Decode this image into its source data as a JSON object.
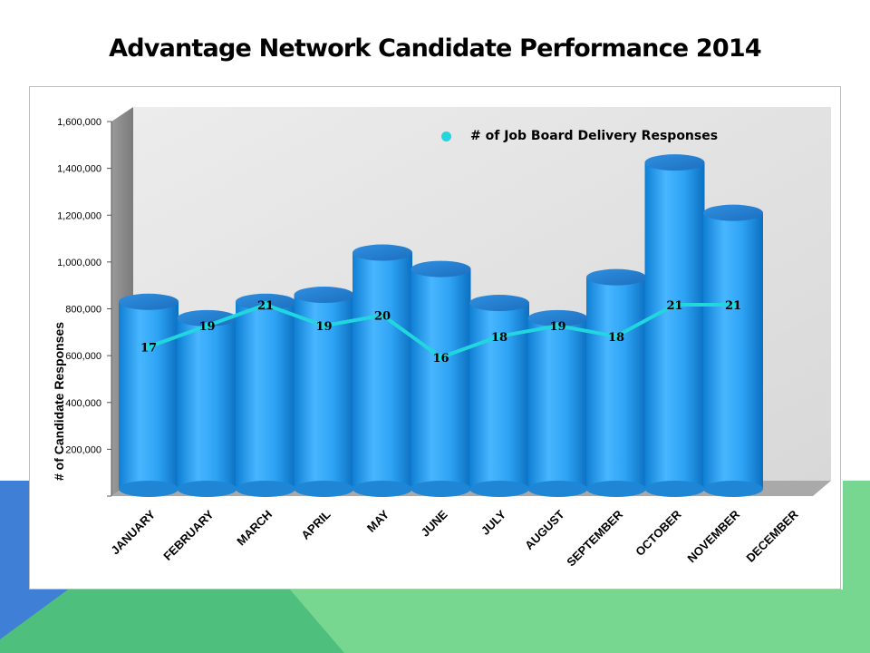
{
  "page": {
    "title": "Advantage Network Candidate Performance 2014",
    "colors": {
      "bar": "#2a98e6",
      "bar_top": "#1f7fcf",
      "line": "#22d6e0",
      "bg_green": "#77d68f",
      "bg_dark_green": "#4fbf7e",
      "bg_blue": "#3f7fd6"
    }
  },
  "chart_data": {
    "type": "bar",
    "title": "Advantage Network Candidate Performance 2014",
    "ylabel": "# of Candidate Responses",
    "xlabel": "",
    "ylim": [
      0,
      1600000
    ],
    "yticks": [
      0,
      200000,
      400000,
      600000,
      800000,
      1000000,
      1200000,
      1400000,
      1600000
    ],
    "ytick_labels": [
      "",
      "200,000",
      "400,000",
      "600,000",
      "800,000",
      "1,000,000",
      "1,200,000",
      "1,400,000",
      "1,600,000"
    ],
    "categories": [
      "JANUARY",
      "FEBRUARY",
      "MARCH",
      "APRIL",
      "MAY",
      "JUNE",
      "JULY",
      "AUGUST",
      "SEPTEMBER",
      "OCTOBER",
      "NOVEMBER",
      "DECEMBER"
    ],
    "series": [
      {
        "type": "bar",
        "values": [
          830000,
          760000,
          830000,
          860000,
          1040000,
          970000,
          825000,
          760000,
          935000,
          1425000,
          1210000,
          null
        ]
      },
      {
        "name": "# of Job Board Delivery Responses",
        "type": "line",
        "values": [
          17,
          19,
          21,
          19,
          20,
          16,
          18,
          19,
          18,
          21,
          21,
          null
        ],
        "data_labels": [
          "17",
          "19",
          "21",
          "19",
          "20",
          "16",
          "18",
          "19",
          "18",
          "21",
          "21",
          ""
        ]
      }
    ],
    "legend": {
      "label": "# of Job Board Delivery Responses",
      "position": "top-right"
    },
    "grid": false
  }
}
